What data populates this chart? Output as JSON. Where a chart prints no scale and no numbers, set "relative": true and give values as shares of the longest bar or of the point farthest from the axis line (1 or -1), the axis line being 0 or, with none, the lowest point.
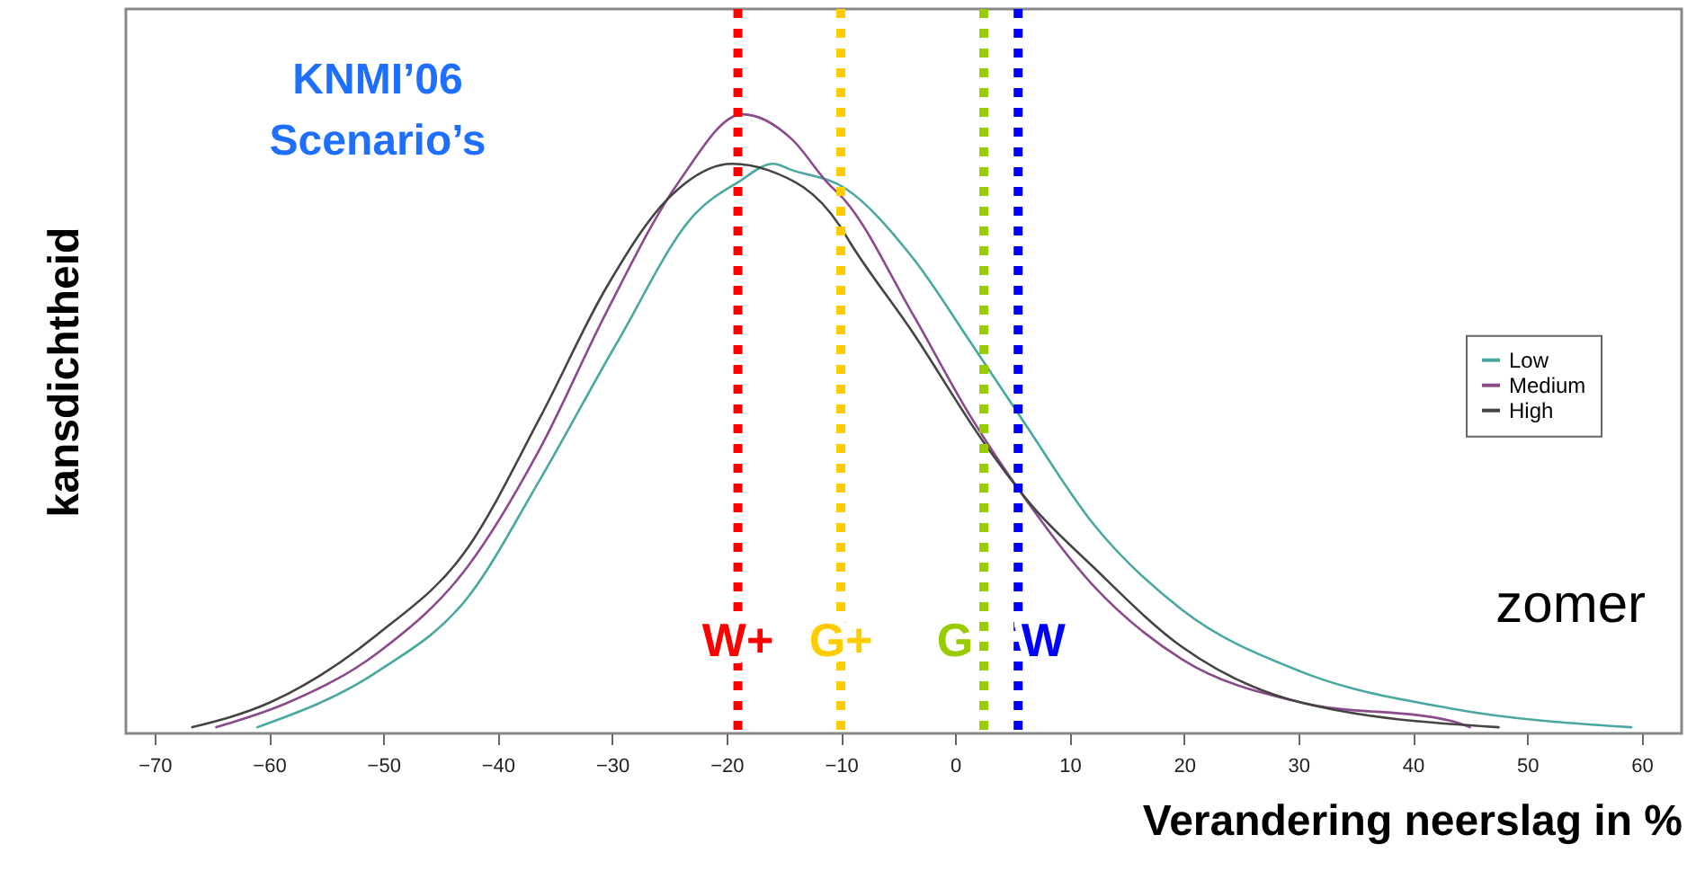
{
  "chart_data": {
    "type": "line",
    "title": "KNMI’06 Scenario’s",
    "xlabel": "Verandering neerslag in %",
    "ylabel": "kansdichtheid",
    "relative": true,
    "legend": "right",
    "tick_labels": "x",
    "line_style": "solid",
    "marker": "none",
    "xlim": [
      -72.5,
      63.5
    ],
    "xticks": [
      -70,
      -60,
      -50,
      -40,
      -30,
      -20,
      -10,
      0,
      10,
      20,
      30,
      40,
      50,
      60
    ],
    "annotations": [
      "zomer"
    ],
    "series": [
      {
        "name": "Low",
        "color": "#4aa8a0",
        "x": [
          -61,
          -50.5,
          -42.6,
          -36.3,
          -29.6,
          -22.7,
          -19,
          -15.9,
          -14.3,
          -9.6,
          -3.8,
          1.4,
          6.1,
          12,
          19.8,
          30.2,
          43.4,
          59.1
        ],
        "values": [
          0.01,
          0.1,
          0.22,
          0.41,
          0.63,
          0.84,
          0.89,
          0.92,
          0.91,
          0.88,
          0.77,
          0.63,
          0.5,
          0.34,
          0.2,
          0.1,
          0.04,
          0.01
        ]
      },
      {
        "name": "Medium",
        "color": "#8b4a8b",
        "x": [
          -64.6,
          -58.3,
          -50.5,
          -42.6,
          -36.3,
          -30.5,
          -24.2,
          -18.6,
          -14.3,
          -11.2,
          -9.6,
          -3.8,
          1.4,
          5.7,
          12,
          19.8,
          30.2,
          43.4,
          45
        ],
        "values": [
          0.01,
          0.05,
          0.13,
          0.27,
          0.46,
          0.68,
          0.89,
          1,
          0.96,
          0.89,
          0.86,
          0.68,
          0.51,
          0.39,
          0.24,
          0.12,
          0.05,
          0.02,
          0.01
        ]
      },
      {
        "name": "High",
        "color": "#444444",
        "x": [
          -66.7,
          -59.9,
          -50.5,
          -42.6,
          -36.3,
          -30.5,
          -25.3,
          -19.5,
          -16.4,
          -10.1,
          -9.1,
          -3.8,
          2.5,
          6.6,
          12,
          19.8,
          30.2,
          47.5
        ],
        "values": [
          0.01,
          0.05,
          0.16,
          0.3,
          0.51,
          0.72,
          0.86,
          0.92,
          0.91,
          0.82,
          0.79,
          0.65,
          0.47,
          0.37,
          0.27,
          0.14,
          0.05,
          0.01
        ]
      }
    ],
    "ref_lines": [
      {
        "axis": "x",
        "value": -19,
        "label": "W+",
        "color": "#ff0000",
        "line_style": "dotted"
      },
      {
        "axis": "x",
        "value": -10,
        "label": "G+",
        "color": "#ffcc00",
        "line_style": "dotted"
      },
      {
        "axis": "x",
        "value": 2.5,
        "label": "G",
        "color": "#99cc00",
        "line_style": "dotted"
      },
      {
        "axis": "x",
        "value": 5.5,
        "label": "W",
        "color": "#0000ff",
        "line_style": "dotted"
      }
    ]
  }
}
